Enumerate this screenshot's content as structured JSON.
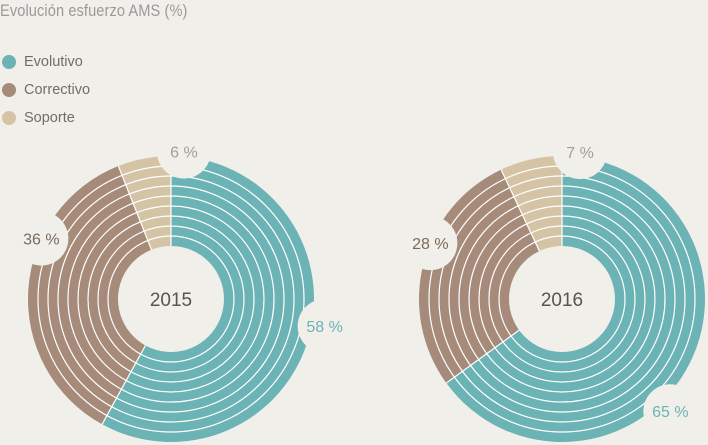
{
  "title": "Evolución esfuerzo AMS  (%)",
  "legend": [
    {
      "label": "Evolutivo",
      "color": "#6bb3b5"
    },
    {
      "label": "Correctivo",
      "color": "#a68b7a"
    },
    {
      "label": "Soporte",
      "color": "#d4c4a5"
    }
  ],
  "chart_data": [
    {
      "type": "pie",
      "title": "2015",
      "categories": [
        "Evolutivo",
        "Correctivo",
        "Soporte"
      ],
      "values": [
        58,
        36,
        6
      ],
      "labels": [
        "58 %",
        "36 %",
        "6 %"
      ],
      "colors": [
        "#6bb3b5",
        "#a68b7a",
        "#d4c4a5"
      ],
      "label_colors": [
        "#6bb3b5",
        "#7a6a5c",
        "#a59f92"
      ]
    },
    {
      "type": "pie",
      "title": "2016",
      "categories": [
        "Evolutivo",
        "Correctivo",
        "Soporte"
      ],
      "values": [
        65,
        28,
        7
      ],
      "labels": [
        "65 %",
        "28 %",
        "7 %"
      ],
      "colors": [
        "#6bb3b5",
        "#a68b7a",
        "#d4c4a5"
      ],
      "label_colors": [
        "#6bb3b5",
        "#7a6a5c",
        "#a59f92"
      ]
    }
  ]
}
